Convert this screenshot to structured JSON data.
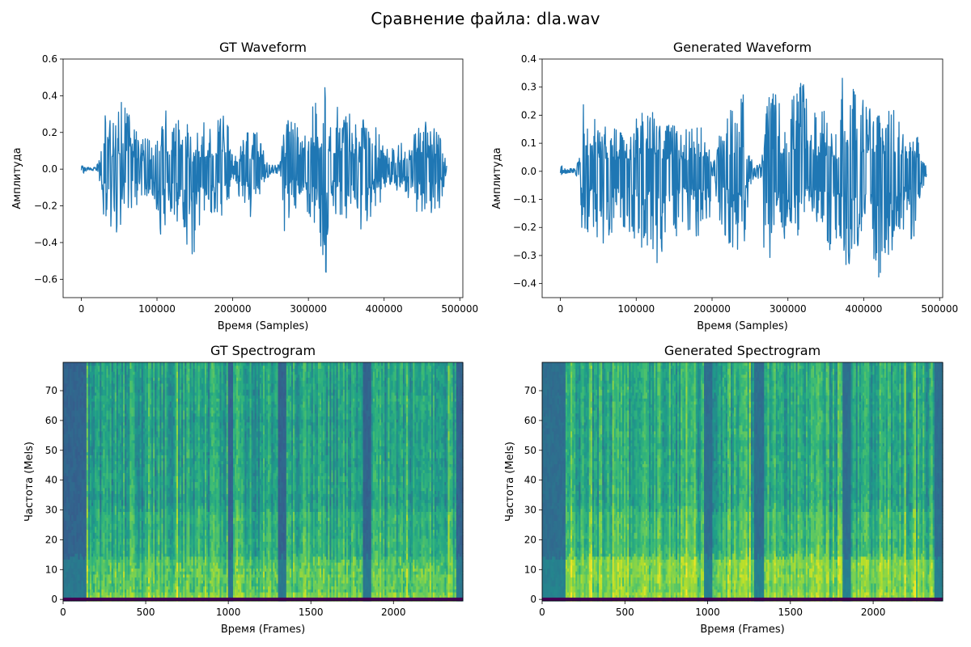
{
  "figure": {
    "suptitle": "Сравнение файла: dla.wav",
    "colors": {
      "line": "#1f77b4",
      "viridis": [
        "#440154",
        "#482878",
        "#3e4989",
        "#31688e",
        "#26828e",
        "#1f9e89",
        "#35b779",
        "#6ece58",
        "#b5de2b",
        "#fde725"
      ]
    }
  },
  "chart_data": [
    {
      "id": "gt-waveform",
      "type": "line",
      "title": "GT Waveform",
      "xlabel": "Время (Samples)",
      "ylabel": "Амплитуда",
      "xlim": [
        -24000,
        504000
      ],
      "ylim": [
        -0.7,
        0.6
      ],
      "xticks": [
        0,
        100000,
        200000,
        300000,
        400000,
        500000
      ],
      "xticklabels": [
        "0",
        "100000",
        "200000",
        "300000",
        "400000",
        "500000"
      ],
      "yticks": [
        -0.6,
        -0.4,
        -0.2,
        0.0,
        0.2,
        0.4,
        0.6
      ],
      "yticklabels": [
        "−0.6",
        "−0.4",
        "−0.2",
        "0.0",
        "0.2",
        "0.4",
        "0.6"
      ],
      "envelope": {
        "x": [
          0,
          2000,
          4000,
          5000,
          8000,
          20000,
          27000,
          30000,
          35000,
          45000,
          55000,
          70000,
          80000,
          95000,
          108000,
          112000,
          120000,
          135000,
          147000,
          160000,
          180000,
          190000,
          196000,
          200000,
          210000,
          220000,
          232000,
          245000,
          255000,
          262000,
          268000,
          272000,
          280000,
          295000,
          303000,
          310000,
          322000,
          330000,
          345000,
          360000,
          368000,
          372000,
          376000,
          385000,
          395000,
          405000,
          420000,
          440000,
          450000,
          460000,
          470000,
          478000,
          483000
        ],
        "top": [
          0.02,
          0.03,
          0.02,
          0.01,
          0.01,
          0.01,
          0.15,
          0.32,
          0.3,
          0.26,
          0.4,
          0.22,
          0.18,
          0.15,
          0.3,
          0.36,
          0.22,
          0.32,
          0.15,
          0.25,
          0.28,
          0.3,
          0.25,
          0.05,
          0.12,
          0.22,
          0.2,
          0.05,
          0.02,
          0.03,
          0.25,
          0.28,
          0.28,
          0.3,
          0.45,
          0.38,
          0.54,
          0.28,
          0.4,
          0.3,
          0.15,
          0.33,
          0.28,
          0.26,
          0.22,
          0.1,
          0.14,
          0.22,
          0.34,
          0.2,
          0.26,
          0.1,
          0.02
        ],
        "bottom": [
          -0.02,
          -0.03,
          -0.02,
          -0.03,
          -0.01,
          -0.01,
          -0.15,
          -0.27,
          -0.3,
          -0.37,
          -0.28,
          -0.2,
          -0.18,
          -0.15,
          -0.44,
          -0.3,
          -0.22,
          -0.4,
          -0.51,
          -0.22,
          -0.25,
          -0.3,
          -0.22,
          -0.05,
          -0.18,
          -0.28,
          -0.25,
          -0.05,
          -0.02,
          -0.03,
          -0.4,
          -0.28,
          -0.22,
          -0.3,
          -0.27,
          -0.33,
          -0.64,
          -0.24,
          -0.28,
          -0.25,
          -0.25,
          -0.58,
          -0.38,
          -0.22,
          -0.18,
          -0.1,
          -0.12,
          -0.2,
          -0.3,
          -0.24,
          -0.28,
          -0.12,
          -0.02
        ]
      }
    },
    {
      "id": "generated-waveform",
      "type": "line",
      "title": "Generated Waveform",
      "xlabel": "Время (Samples)",
      "ylabel": "Амплитуда",
      "xlim": [
        -24000,
        504000
      ],
      "ylim": [
        -0.45,
        0.4
      ],
      "xticks": [
        0,
        100000,
        200000,
        300000,
        400000,
        500000
      ],
      "xticklabels": [
        "0",
        "100000",
        "200000",
        "300000",
        "400000",
        "500000"
      ],
      "yticks": [
        -0.4,
        -0.3,
        -0.2,
        -0.1,
        0.0,
        0.1,
        0.2,
        0.3,
        0.4
      ],
      "yticklabels": [
        "−0.4",
        "−0.3",
        "−0.2",
        "−0.1",
        "0.0",
        "0.1",
        "0.2",
        "0.3",
        "0.4"
      ],
      "envelope": {
        "x": [
          0,
          2000,
          4000,
          8000,
          20000,
          25000,
          30000,
          40000,
          55000,
          70000,
          80000,
          95000,
          105000,
          115000,
          125000,
          135000,
          145000,
          160000,
          180000,
          190000,
          196000,
          200000,
          210000,
          225000,
          240000,
          250000,
          258000,
          265000,
          270000,
          280000,
          290000,
          300000,
          310000,
          320000,
          330000,
          345000,
          360000,
          367000,
          372000,
          376000,
          385000,
          395000,
          405000,
          420000,
          440000,
          450000,
          460000,
          470000,
          478000,
          483000
        ],
        "top": [
          0.02,
          0.03,
          0.01,
          0.01,
          0.01,
          0.05,
          0.26,
          0.2,
          0.18,
          0.16,
          0.15,
          0.17,
          0.23,
          0.24,
          0.2,
          0.14,
          0.19,
          0.14,
          0.17,
          0.21,
          0.18,
          0.02,
          0.15,
          0.24,
          0.3,
          0.05,
          0.02,
          0.04,
          0.28,
          0.32,
          0.24,
          0.26,
          0.27,
          0.35,
          0.2,
          0.23,
          0.2,
          0.1,
          0.35,
          0.36,
          0.3,
          0.28,
          0.25,
          0.22,
          0.22,
          0.16,
          0.18,
          0.18,
          0.08,
          0.02
        ],
        "bottom": [
          -0.02,
          -0.02,
          -0.01,
          -0.01,
          -0.01,
          -0.05,
          -0.29,
          -0.2,
          -0.26,
          -0.22,
          -0.22,
          -0.22,
          -0.29,
          -0.27,
          -0.32,
          -0.37,
          -0.25,
          -0.22,
          -0.24,
          -0.26,
          -0.2,
          -0.02,
          -0.18,
          -0.28,
          -0.32,
          -0.05,
          -0.02,
          -0.04,
          -0.4,
          -0.3,
          -0.28,
          -0.3,
          -0.26,
          -0.26,
          -0.2,
          -0.28,
          -0.3,
          -0.2,
          -0.38,
          -0.4,
          -0.3,
          -0.25,
          -0.28,
          -0.39,
          -0.28,
          -0.2,
          -0.25,
          -0.22,
          -0.1,
          -0.02
        ]
      }
    },
    {
      "id": "gt-spectrogram",
      "type": "heatmap",
      "title": "GT Spectrogram",
      "xlabel": "Время (Frames)",
      "ylabel": "Частота (Mels)",
      "xlim": [
        0,
        2420
      ],
      "ylim": [
        -0.5,
        79.5
      ],
      "xticks": [
        0,
        500,
        1000,
        1500,
        2000
      ],
      "xticklabels": [
        "0",
        "500",
        "1000",
        "1500",
        "2000"
      ],
      "yticks": [
        0,
        10,
        20,
        30,
        40,
        50,
        60,
        70
      ],
      "yticklabels": [
        "0",
        "10",
        "20",
        "30",
        "40",
        "50",
        "60",
        "70"
      ],
      "silent_frames": [
        [
          0,
          140
        ],
        [
          1000,
          1030
        ],
        [
          1300,
          1350
        ],
        [
          1820,
          1870
        ],
        [
          2380,
          2420
        ]
      ],
      "dark_band_mels": [
        -0.5,
        0.6
      ]
    },
    {
      "id": "generated-spectrogram",
      "type": "heatmap",
      "title": "Generated Spectrogram",
      "xlabel": "Время (Frames)",
      "ylabel": "Частота (Mels)",
      "xlim": [
        0,
        2420
      ],
      "ylim": [
        -0.5,
        79.5
      ],
      "xticks": [
        0,
        500,
        1000,
        1500,
        2000
      ],
      "xticklabels": [
        "0",
        "500",
        "1000",
        "1500",
        "2000"
      ],
      "yticks": [
        0,
        10,
        20,
        30,
        40,
        50,
        60,
        70
      ],
      "yticklabels": [
        "0",
        "10",
        "20",
        "30",
        "40",
        "50",
        "60",
        "70"
      ],
      "silent_frames": [
        [
          0,
          140
        ],
        [
          980,
          1030
        ],
        [
          1280,
          1340
        ],
        [
          1820,
          1870
        ],
        [
          2370,
          2420
        ]
      ],
      "dark_band_mels": [
        -0.5,
        0.6
      ]
    }
  ]
}
